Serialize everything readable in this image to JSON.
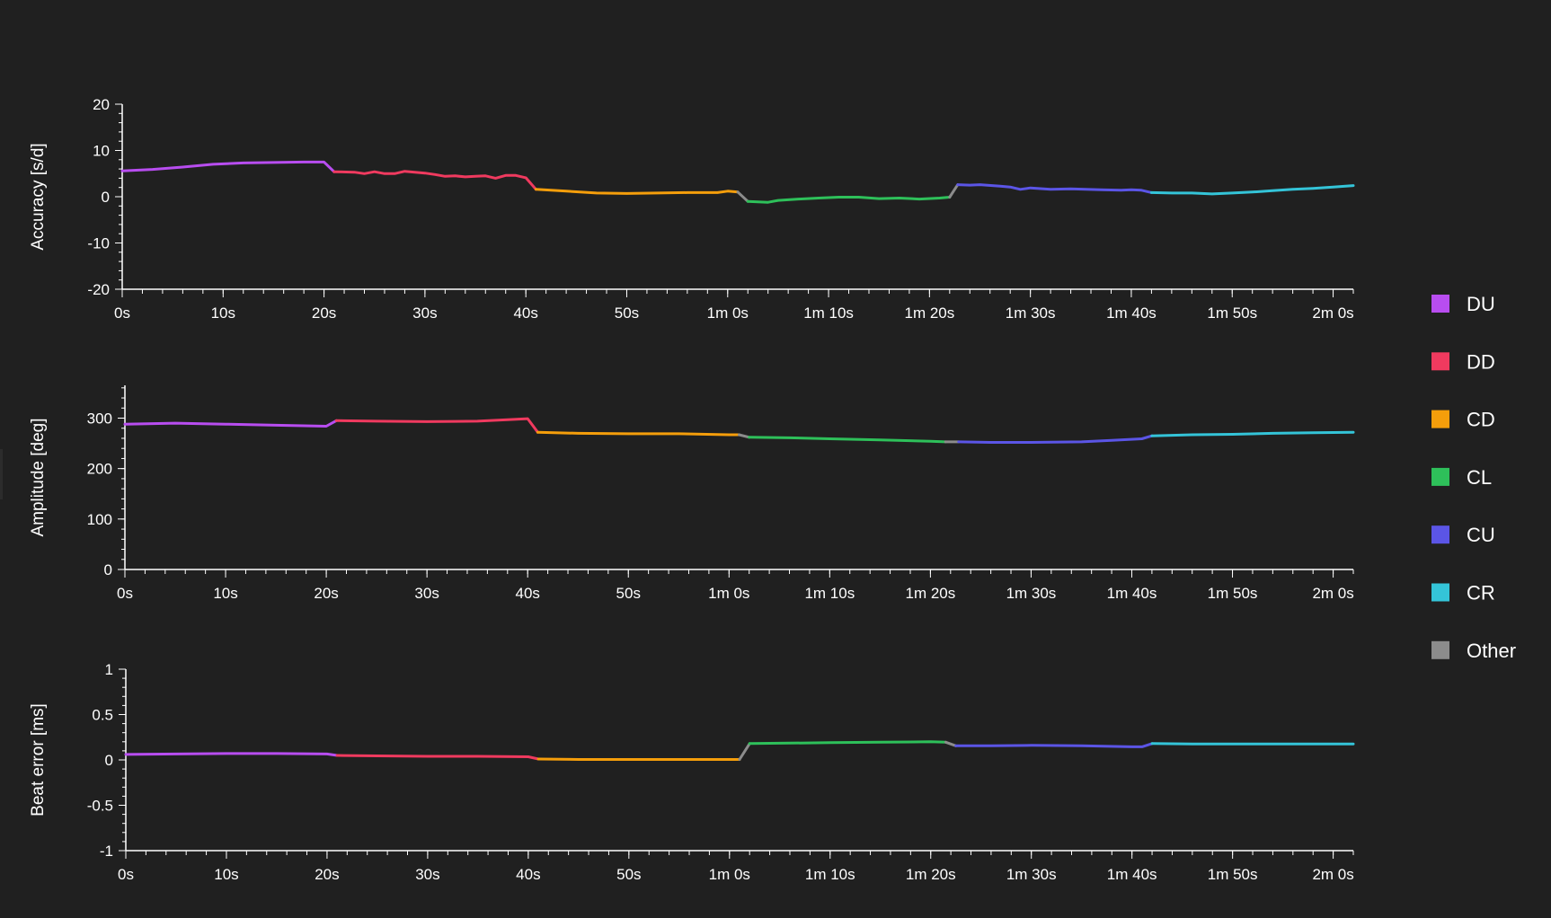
{
  "colors": {
    "background": "#202020",
    "axis": "#ffffff",
    "DU": "#b84df0",
    "DD": "#f03a5f",
    "CD": "#f59e0b",
    "CL": "#2ec05a",
    "CU": "#5b55e6",
    "CR": "#34c4d8",
    "Other": "#8c8c8c"
  },
  "legend": {
    "items": [
      {
        "key": "DU",
        "label": "DU"
      },
      {
        "key": "DD",
        "label": "DD"
      },
      {
        "key": "CD",
        "label": "CD"
      },
      {
        "key": "CL",
        "label": "CL"
      },
      {
        "key": "CU",
        "label": "CU"
      },
      {
        "key": "CR",
        "label": "CR"
      },
      {
        "key": "Other",
        "label": "Other"
      }
    ]
  },
  "chart_data": [
    {
      "type": "line",
      "id": "accuracy",
      "title": "",
      "xlabel": "",
      "ylabel": "Accuracy [s/d]",
      "ylim": [
        -20,
        20
      ],
      "yticks": [
        -20,
        -10,
        0,
        10,
        20
      ],
      "ytick_labels": [
        "-20",
        "-10",
        "0",
        "10",
        "20"
      ],
      "xlim": [
        0,
        122
      ],
      "xticks": [
        0,
        10,
        20,
        30,
        40,
        50,
        60,
        70,
        80,
        90,
        100,
        110,
        120
      ],
      "xtick_labels": [
        "0s",
        "10s",
        "20s",
        "30s",
        "40s",
        "50s",
        "1m 0s",
        "1m 10s",
        "1m 20s",
        "1m 30s",
        "1m 40s",
        "1m 50s",
        "2m 0s"
      ],
      "grid": false,
      "series": [
        {
          "name": "DU",
          "x": [
            0,
            3,
            6,
            9,
            12,
            15,
            18,
            20,
            21
          ],
          "y": [
            5.6,
            5.9,
            6.4,
            7.0,
            7.3,
            7.4,
            7.5,
            7.5,
            5.4
          ]
        },
        {
          "name": "DD",
          "x": [
            21,
            23,
            24,
            25,
            26,
            27,
            28,
            29,
            30,
            31,
            32,
            33,
            34,
            35,
            36,
            37,
            38,
            39,
            40,
            41
          ],
          "y": [
            5.4,
            5.3,
            5.0,
            5.4,
            5.0,
            5.0,
            5.5,
            5.3,
            5.1,
            4.8,
            4.4,
            4.5,
            4.3,
            4.4,
            4.5,
            4.0,
            4.6,
            4.6,
            4.1,
            1.6
          ]
        },
        {
          "name": "CD",
          "x": [
            41,
            44,
            47,
            50,
            53,
            56,
            59,
            60,
            61
          ],
          "y": [
            1.6,
            1.2,
            0.8,
            0.7,
            0.8,
            0.9,
            0.9,
            1.2,
            1.0
          ]
        },
        {
          "name": "Other",
          "x": [
            61,
            62
          ],
          "y": [
            1.0,
            -1.0
          ]
        },
        {
          "name": "CL",
          "x": [
            62,
            64,
            65,
            67,
            69,
            71,
            73,
            75,
            77,
            79,
            81,
            82
          ],
          "y": [
            -1.0,
            -1.2,
            -0.8,
            -0.5,
            -0.3,
            -0.1,
            -0.1,
            -0.4,
            -0.3,
            -0.5,
            -0.3,
            -0.1
          ]
        },
        {
          "name": "Other",
          "x": [
            82,
            82.8
          ],
          "y": [
            -0.1,
            2.6
          ]
        },
        {
          "name": "CU",
          "x": [
            82.8,
            84,
            85,
            87,
            88,
            89,
            90,
            92,
            94,
            97,
            99,
            100,
            101,
            102
          ],
          "y": [
            2.6,
            2.5,
            2.6,
            2.3,
            2.1,
            1.6,
            1.9,
            1.6,
            1.7,
            1.5,
            1.4,
            1.5,
            1.4,
            0.9
          ]
        },
        {
          "name": "CR",
          "x": [
            102,
            104,
            106,
            108,
            110,
            112,
            114,
            116,
            118,
            120,
            122
          ],
          "y": [
            0.9,
            0.8,
            0.8,
            0.6,
            0.8,
            1.0,
            1.3,
            1.6,
            1.8,
            2.1,
            2.4
          ]
        }
      ]
    },
    {
      "type": "line",
      "id": "amplitude",
      "title": "",
      "xlabel": "",
      "ylabel": "Amplitude [deg]",
      "ylim": [
        0,
        365
      ],
      "yticks": [
        0,
        100,
        200,
        300
      ],
      "ytick_labels": [
        "0",
        "100",
        "200",
        "300"
      ],
      "xlim": [
        0,
        122
      ],
      "xticks": [
        0,
        10,
        20,
        30,
        40,
        50,
        60,
        70,
        80,
        90,
        100,
        110,
        120
      ],
      "xtick_labels": [
        "0s",
        "10s",
        "20s",
        "30s",
        "40s",
        "50s",
        "1m 0s",
        "1m 10s",
        "1m 20s",
        "1m 30s",
        "1m 40s",
        "1m 50s",
        "2m 0s"
      ],
      "grid": false,
      "series": [
        {
          "name": "DU",
          "x": [
            0,
            5,
            10,
            15,
            20,
            21
          ],
          "y": [
            288,
            290,
            288,
            286,
            284,
            295
          ]
        },
        {
          "name": "DD",
          "x": [
            21,
            25,
            30,
            35,
            38,
            40,
            41
          ],
          "y": [
            295,
            294,
            293,
            294,
            297,
            299,
            272
          ]
        },
        {
          "name": "CD",
          "x": [
            41,
            45,
            50,
            55,
            60,
            61
          ],
          "y": [
            272,
            270,
            269,
            269,
            267,
            267
          ]
        },
        {
          "name": "Other",
          "x": [
            61,
            62
          ],
          "y": [
            267,
            262
          ]
        },
        {
          "name": "CL",
          "x": [
            62,
            66,
            70,
            75,
            80,
            81.5
          ],
          "y": [
            262,
            261,
            259,
            257,
            254,
            253
          ]
        },
        {
          "name": "Other",
          "x": [
            81.5,
            82.8
          ],
          "y": [
            253,
            253
          ]
        },
        {
          "name": "CU",
          "x": [
            82.8,
            86,
            90,
            95,
            98,
            101,
            102
          ],
          "y": [
            253,
            252,
            252,
            253,
            256,
            259,
            265
          ]
        },
        {
          "name": "CR",
          "x": [
            102,
            106,
            110,
            114,
            118,
            122
          ],
          "y": [
            265,
            267,
            268,
            270,
            271,
            272
          ]
        }
      ]
    },
    {
      "type": "line",
      "id": "beat_error",
      "title": "",
      "xlabel": "",
      "ylabel": "Beat error [ms]",
      "ylim": [
        -1,
        1
      ],
      "yticks": [
        -1,
        -0.5,
        0,
        0.5,
        1
      ],
      "ytick_labels": [
        "-1",
        "-0.5",
        "0",
        "0.5",
        "1"
      ],
      "xlim": [
        0,
        122
      ],
      "xticks": [
        0,
        10,
        20,
        30,
        40,
        50,
        60,
        70,
        80,
        90,
        100,
        110,
        120
      ],
      "xtick_labels": [
        "0s",
        "10s",
        "20s",
        "30s",
        "40s",
        "50s",
        "1m 0s",
        "1m 10s",
        "1m 20s",
        "1m 30s",
        "1m 40s",
        "1m 50s",
        "2m 0s"
      ],
      "grid": false,
      "series": [
        {
          "name": "DU",
          "x": [
            0,
            5,
            10,
            15,
            20,
            21
          ],
          "y": [
            0.06,
            0.065,
            0.07,
            0.07,
            0.065,
            0.05
          ]
        },
        {
          "name": "DD",
          "x": [
            21,
            25,
            30,
            35,
            40,
            41
          ],
          "y": [
            0.05,
            0.045,
            0.04,
            0.04,
            0.035,
            0.01
          ]
        },
        {
          "name": "CD",
          "x": [
            41,
            45,
            50,
            55,
            60,
            61
          ],
          "y": [
            0.01,
            0.005,
            0.005,
            0.005,
            0.005,
            0.005
          ]
        },
        {
          "name": "Other",
          "x": [
            61,
            62
          ],
          "y": [
            0.005,
            0.18
          ]
        },
        {
          "name": "CL",
          "x": [
            62,
            66,
            70,
            75,
            80,
            81.5
          ],
          "y": [
            0.18,
            0.185,
            0.19,
            0.195,
            0.2,
            0.195
          ]
        },
        {
          "name": "Other",
          "x": [
            81.5,
            82.5
          ],
          "y": [
            0.195,
            0.155
          ]
        },
        {
          "name": "CU",
          "x": [
            82.5,
            86,
            90,
            95,
            100,
            101,
            102
          ],
          "y": [
            0.155,
            0.155,
            0.16,
            0.155,
            0.145,
            0.145,
            0.18
          ]
        },
        {
          "name": "CR",
          "x": [
            102,
            106,
            110,
            116,
            122
          ],
          "y": [
            0.18,
            0.175,
            0.175,
            0.175,
            0.175
          ]
        }
      ]
    }
  ]
}
